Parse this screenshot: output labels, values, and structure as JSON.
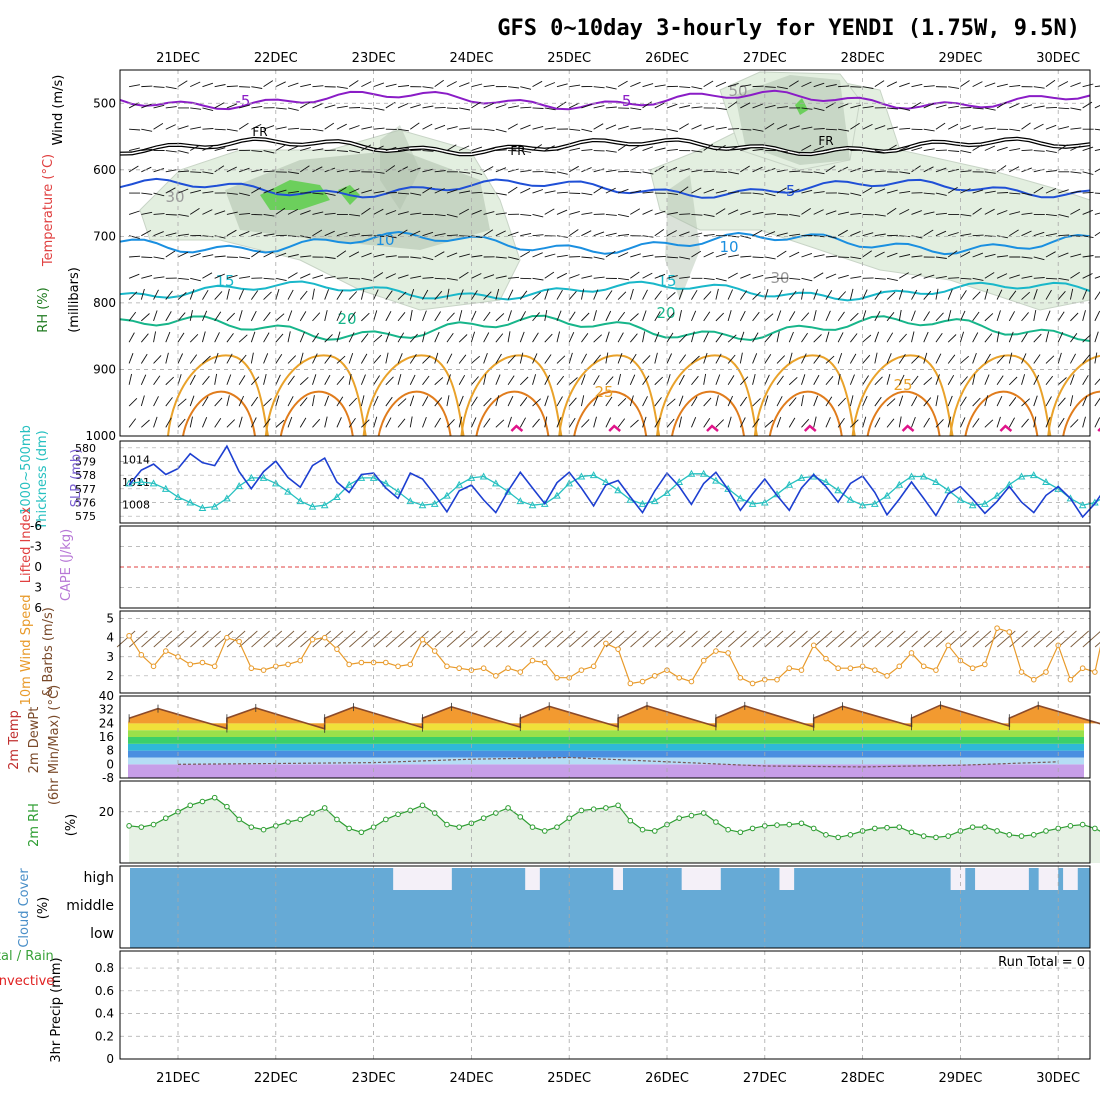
{
  "title": "GFS 0~10day 3-hourly for YENDI (1.75W, 9.5N)",
  "date_labels": [
    "21DEC",
    "22DEC",
    "23DEC",
    "24DEC",
    "25DEC",
    "26DEC",
    "27DEC",
    "28DEC",
    "29DEC",
    "30DEC"
  ],
  "colors": {
    "purple": "#8a1cc6",
    "freezing": "#000000",
    "blue": "#1f4fd6",
    "lightblue": "#1a8fe0",
    "cyan": "#19b7c9",
    "teal": "#17b58a",
    "orange": "#e9a22a",
    "darkorange": "#e07c1c",
    "magenta": "#e0148a",
    "rh_fill": "#e3efe0",
    "rh_dark": "#aebfab",
    "rh_green": "#6ccf5c",
    "slp": "#1d3fd1",
    "thick": "#26c0c0",
    "wind10": "#e89a2a",
    "barb": "#7a5a3a",
    "temp_line": "#8b4a2a",
    "dew_line": "#7a5a5a",
    "rh2m": "#2f9e33",
    "rh2m_fill": "#e6f1e4",
    "cloud": "#66aad6",
    "cloud_gap": "#f4f0f8",
    "grid": "#a8a8a8",
    "zero_line": "#e04040"
  },
  "chart_data": [
    {
      "id": "upper_air",
      "type": "contour",
      "ylabel_parts": [
        "Wind (m/s)",
        "Temperature (°C)",
        "RH (%)",
        "(millibars)"
      ],
      "y_ticks": [
        "500",
        "600",
        "700",
        "800",
        "900",
        "1000"
      ],
      "ylim": [
        450,
        1000
      ],
      "contour_labels": [
        "-5",
        "-5",
        "FR",
        "FR",
        "FR",
        "-5",
        "10",
        "10",
        "15",
        "15",
        "20",
        "20",
        "25",
        "25",
        "30",
        "30",
        "50"
      ],
      "isotherms": [
        {
          "name": "-5 (upper)",
          "base_hPa": 495
        },
        {
          "name": "FR",
          "base_hPa": 565
        },
        {
          "name": "-5",
          "base_hPa": 628
        },
        {
          "name": "10",
          "base_hPa": 710
        },
        {
          "name": "15",
          "base_hPa": 782
        },
        {
          "name": "20",
          "base_hPa": 838
        },
        {
          "name": "25",
          "base_hPa": 905
        }
      ]
    },
    {
      "id": "thickness_slp",
      "type": "line",
      "ylabel_parts": [
        "1000~500mb",
        "Thickness (dm)",
        "SLP (mb)"
      ],
      "thickness_ticks": [
        "580",
        "579",
        "578",
        "577",
        "576",
        "575"
      ],
      "thickness_ylim": [
        574.5,
        580.5
      ],
      "slp_ticks": [
        "1014",
        "1011",
        "1008"
      ],
      "slp_ylim": [
        1005.5,
        1016.5
      ],
      "thickness": [
        577.4,
        577.5,
        577.4,
        577.0,
        576.4,
        576.0,
        575.6,
        575.7,
        576.3,
        577.2,
        577.8,
        577.8,
        577.4,
        576.8,
        576.1,
        575.7,
        575.8,
        576.4,
        577.3,
        577.8,
        577.8,
        577.4,
        576.8,
        576.1,
        575.8,
        575.9,
        576.5,
        577.3,
        577.8,
        577.9,
        577.4,
        576.8,
        576.1,
        575.8,
        575.9,
        576.5,
        577.4,
        577.9,
        578.0,
        577.5,
        576.9,
        576.2,
        575.9,
        576.1,
        576.7,
        577.5,
        578.1,
        578.1,
        577.6,
        577.0,
        576.3,
        575.9,
        576.0,
        576.6,
        577.3,
        577.8,
        577.9,
        577.5,
        576.9,
        576.2,
        575.8,
        575.9,
        576.5,
        577.3,
        577.9,
        577.9,
        577.5,
        576.9,
        576.2,
        575.8,
        575.9,
        576.5,
        577.3,
        577.9,
        578.0,
        577.5,
        577.0,
        576.3,
        575.8,
        576.0,
        576.5,
        577.3,
        577.9,
        577.9,
        577.5,
        576.5
      ],
      "slp": [
        1010.6,
        1012.6,
        1013.4,
        1012.0,
        1012.8,
        1014.8,
        1013.6,
        1013.2,
        1015.8,
        1012.4,
        1010.1,
        1012.4,
        1013.8,
        1011.6,
        1010.3,
        1013.2,
        1014.2,
        1011.0,
        1009.6,
        1012.0,
        1012.2,
        1010.2,
        1008.8,
        1012.2,
        1011.4,
        1009.3,
        1007.0,
        1009.8,
        1010.6,
        1008.6,
        1006.9,
        1009.8,
        1012.3,
        1010.2,
        1008.1,
        1010.9,
        1012.3,
        1010.2,
        1007.8,
        1010.6,
        1011.2,
        1009.0,
        1006.9,
        1009.8,
        1012.2,
        1010.4,
        1008.0,
        1010.8,
        1012.3,
        1010.0,
        1007.2,
        1009.4,
        1011.4,
        1009.2,
        1007.2,
        1010.2,
        1012.0,
        1010.4,
        1008.3,
        1010.8,
        1011.8,
        1009.6,
        1006.6,
        1008.7,
        1011.0,
        1008.8,
        1006.5,
        1009.4,
        1010.4,
        1008.7,
        1006.8,
        1008.4,
        1010.4,
        1008.3,
        1006.9,
        1009.2,
        1010.4,
        1008.8,
        1006.3,
        1008.1,
        1010.5,
        1008.6,
        1007.2,
        1009.6,
        1010.9,
        1009.0
      ]
    },
    {
      "id": "stability",
      "type": "line",
      "ylabel_parts": [
        "Lifted Index",
        "CAPE (J/kg)"
      ],
      "y_ticks": [
        "-6",
        "-3",
        "0",
        "3",
        "6"
      ],
      "ylim": [
        6,
        -6
      ],
      "lifted_index": []
    },
    {
      "id": "wind10m",
      "type": "line",
      "ylabel_parts": [
        "10m Wind Speed",
        "& Barbs (m/s)"
      ],
      "y_ticks": [
        "5",
        "4",
        "3",
        "2"
      ],
      "ylim": [
        1.1,
        5.4
      ],
      "speed": [
        4.1,
        3.1,
        2.5,
        3.3,
        3.0,
        2.6,
        2.7,
        2.5,
        4.0,
        3.8,
        2.4,
        2.3,
        2.5,
        2.6,
        2.8,
        3.9,
        4.0,
        3.4,
        2.6,
        2.7,
        2.7,
        2.7,
        2.5,
        2.6,
        3.9,
        3.3,
        2.5,
        2.4,
        2.3,
        2.4,
        2.0,
        2.4,
        2.2,
        2.8,
        2.7,
        1.9,
        1.9,
        2.3,
        2.5,
        3.7,
        3.4,
        1.6,
        1.7,
        2.0,
        2.3,
        1.9,
        1.7,
        2.8,
        3.3,
        3.2,
        1.9,
        1.6,
        1.8,
        1.8,
        2.4,
        2.3,
        3.6,
        2.9,
        2.4,
        2.4,
        2.5,
        2.3,
        2.0,
        2.5,
        3.2,
        2.5,
        2.3,
        3.6,
        2.8,
        2.4,
        2.6,
        4.5,
        4.3,
        2.2,
        1.8,
        2.2,
        3.6,
        1.8,
        2.4,
        2.2,
        5.1,
        4.5,
        3.0,
        1.9,
        3.0,
        3.9
      ]
    },
    {
      "id": "temp2m",
      "type": "area",
      "ylabel_parts": [
        "2m Temp",
        "2m DewPt",
        "(6hr Min/Max) (°C)"
      ],
      "y_ticks": [
        "40",
        "32",
        "24",
        "16",
        "8",
        "0",
        "-8"
      ],
      "ylim": [
        -8,
        40
      ],
      "temp_daily_max": [
        32.6,
        33.0,
        33.5,
        33.6,
        34.0,
        34.2,
        34.2,
        34.0,
        34.6,
        34.4
      ],
      "temp_daily_min": [
        21.0,
        20.8,
        21.5,
        21.8,
        22.0,
        22.2,
        22.0,
        22.3,
        22.4,
        22.6
      ],
      "dewpoint": [
        0.0,
        0.5,
        1.0,
        3.0,
        4.0,
        1.5,
        -1.0,
        -1.5,
        -0.5,
        1.5
      ]
    },
    {
      "id": "rh2m",
      "type": "area",
      "ylabel_parts": [
        "2m RH",
        "(%)"
      ],
      "y_ticks": [
        "20"
      ],
      "ylim": [
        0,
        32
      ],
      "rh": [
        14.5,
        14.0,
        15.0,
        17.5,
        20.0,
        22.5,
        24.0,
        25.5,
        22.0,
        17.0,
        14.0,
        13.0,
        14.5,
        16.0,
        17.0,
        19.5,
        21.5,
        17.0,
        13.5,
        12.0,
        14.0,
        17.0,
        19.0,
        20.5,
        22.5,
        19.5,
        15.0,
        14.0,
        15.5,
        17.5,
        19.5,
        21.5,
        18.0,
        14.0,
        12.5,
        14.0,
        17.5,
        20.5,
        21.0,
        21.5,
        22.5,
        16.5,
        13.0,
        12.5,
        15.0,
        17.5,
        18.5,
        19.5,
        16.0,
        13.0,
        12.0,
        13.5,
        14.5,
        14.8,
        15.0,
        15.5,
        13.5,
        11.0,
        10.0,
        11.0,
        12.5,
        13.5,
        13.8,
        14.0,
        12.0,
        10.5,
        10.0,
        10.5,
        12.5,
        14.0,
        14.0,
        12.5,
        11.0,
        10.5,
        11.0,
        12.5,
        13.5,
        14.5,
        15.0,
        13.5,
        11.0,
        10.0,
        11.5,
        13.5,
        14.5,
        14.0
      ]
    },
    {
      "id": "cloud",
      "type": "bar",
      "ylabel_parts": [
        "Cloud Cover",
        "(%)"
      ],
      "y_ticks": [
        "high",
        "middle",
        "low"
      ],
      "gaps_high_layer": [
        [
          23.2,
          23.8
        ],
        [
          24.55,
          24.7
        ],
        [
          25.45,
          25.55
        ],
        [
          26.15,
          26.55
        ],
        [
          27.15,
          27.3
        ],
        [
          28.9,
          29.05
        ],
        [
          29.15,
          29.7
        ],
        [
          29.8,
          30.0
        ],
        [
          30.05,
          30.2
        ]
      ]
    },
    {
      "id": "precip",
      "type": "bar",
      "ylabel_parts": [
        "3hr Precip (mm)",
        "Total / Rain",
        "Convective"
      ],
      "y_ticks": [
        "0.8",
        "0.6",
        "0.4",
        "0.2",
        "0"
      ],
      "ylim": [
        0,
        0.95
      ],
      "run_total": "Run Total = 0",
      "values": []
    }
  ]
}
